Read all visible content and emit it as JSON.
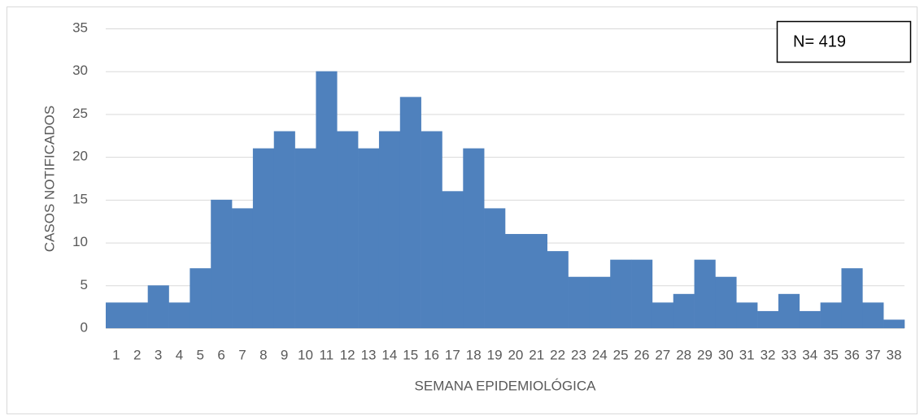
{
  "chart_data": {
    "type": "bar",
    "annotation": "N= 419",
    "xlabel": "SEMANA EPIDEMIOLÓGICA",
    "ylabel": "CASOS NOTIFICADOS",
    "categories": [
      "1",
      "2",
      "3",
      "4",
      "5",
      "6",
      "7",
      "8",
      "9",
      "10",
      "11",
      "12",
      "13",
      "14",
      "15",
      "16",
      "17",
      "18",
      "19",
      "20",
      "21",
      "22",
      "23",
      "24",
      "25",
      "26",
      "27",
      "28",
      "29",
      "30",
      "31",
      "32",
      "33",
      "34",
      "35",
      "36",
      "37",
      "38"
    ],
    "values": [
      3,
      3,
      5,
      3,
      7,
      15,
      14,
      21,
      23,
      21,
      30,
      23,
      21,
      23,
      27,
      23,
      16,
      21,
      14,
      11,
      11,
      9,
      6,
      6,
      8,
      8,
      3,
      4,
      8,
      6,
      3,
      2,
      4,
      2,
      3,
      7,
      3,
      1
    ],
    "color": "#4f81bd",
    "ylim": [
      0,
      35
    ],
    "yticks": [
      0,
      5,
      10,
      15,
      20,
      25,
      30,
      35
    ],
    "grid": true
  }
}
